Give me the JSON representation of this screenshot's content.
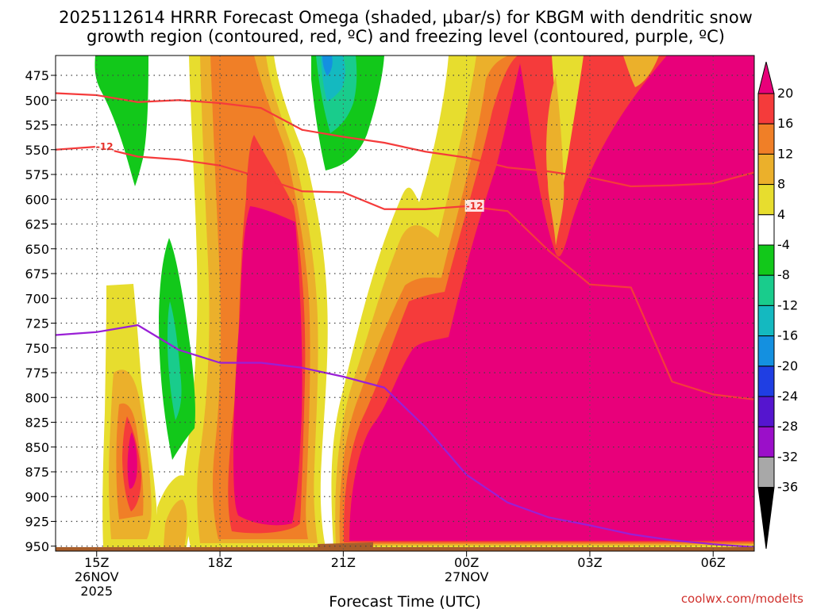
{
  "chart_data": {
    "type": "heatmap",
    "title_line1": "2025112614 HRRR Forecast Omega (shaded, μbar/s) for KBGM with dendritic snow",
    "title_line2": "growth region (contoured, red, ºC) and freezing level (contoured, purple, ºC)",
    "xlabel": "Forecast Time (UTC)",
    "credit": "coolwx.com/modelts",
    "x_range_hours": [
      14.0,
      31.0
    ],
    "y_range_hpa": [
      455,
      955
    ],
    "y_ticks": [
      475,
      500,
      525,
      550,
      575,
      600,
      625,
      650,
      675,
      700,
      725,
      750,
      775,
      800,
      825,
      850,
      875,
      900,
      925,
      950
    ],
    "x_ticks": [
      {
        "hour": 15,
        "lines": [
          "15Z",
          "26NOV",
          "2025"
        ]
      },
      {
        "hour": 18,
        "lines": [
          "18Z"
        ]
      },
      {
        "hour": 21,
        "lines": [
          "21Z"
        ]
      },
      {
        "hour": 24,
        "lines": [
          "00Z",
          "27NOV"
        ]
      },
      {
        "hour": 27,
        "lines": [
          "03Z"
        ]
      },
      {
        "hour": 30,
        "lines": [
          "06Z"
        ]
      }
    ],
    "colorbar": {
      "labels": [
        "20",
        "16",
        "12",
        "8",
        "4",
        "-4",
        "-8",
        "-12",
        "-16",
        "-20",
        "-24",
        "-28",
        "-32",
        "-36"
      ],
      "colors": {
        "pos20": "#e8007a",
        "pos16": "#f53b3b",
        "pos12": "#f07f27",
        "pos8": "#ebb02b",
        "pos4": "#e7dd2e",
        "zero": "#ffffff",
        "neg4": "#12c81a",
        "neg8": "#19cc8c",
        "neg12": "#14b9c0",
        "neg16": "#1490e0",
        "neg20": "#1f3ee3",
        "neg24": "#5515cf",
        "neg28": "#9b0fc9",
        "neg32": "#a8a8a8",
        "neg36": "#000000"
      }
    },
    "omega_regions": [
      {
        "label": "strong ascent 15-16Z",
        "level": 20,
        "center_hour": 16.0,
        "pressure_range_hpa": [
          795,
          880
        ]
      },
      {
        "label": "ascent band 18-20Z",
        "level": 20,
        "hour_range": [
          19.0,
          20.2
        ],
        "pressure_range_hpa": [
          570,
          920
        ]
      },
      {
        "label": "ascent band 22Z-08Z",
        "level": 20,
        "hour_range": [
          21.5,
          31.0
        ],
        "pressure_range_hpa": [
          455,
          950
        ]
      },
      {
        "label": "descent 15-16Z",
        "level": -8,
        "hour_range": [
          15.0,
          16.4
        ],
        "pressure_range_hpa": [
          455,
          560
        ]
      },
      {
        "label": "descent 17Z",
        "level": -12,
        "hour_range": [
          16.6,
          17.4
        ],
        "pressure_range_hpa": [
          600,
          835
        ]
      },
      {
        "label": "descent 21-22Z",
        "level": -16,
        "hour_range": [
          20.8,
          22.3
        ],
        "pressure_range_hpa": [
          455,
          540
        ]
      }
    ],
    "contours": [
      {
        "name": "dendritic -16C upper",
        "color": "#f53b3b",
        "x_hours": [
          14.0,
          15.0,
          16.0,
          17.0,
          18.0,
          19.0,
          20.0,
          21.0,
          22.0,
          23.0,
          24.0,
          25.0,
          26.0,
          27.0,
          28.0,
          29.0,
          30.0,
          31.0
        ],
        "pressure_hpa": [
          493,
          495,
          502,
          500,
          503,
          508,
          530,
          537,
          543,
          552,
          558,
          568,
          572,
          578,
          587,
          586,
          584,
          573
        ]
      },
      {
        "name": "dendritic -12C lower",
        "label": "-12",
        "color": "#f53b3b",
        "x_hours": [
          14.0,
          15.0,
          16.0,
          17.0,
          18.0,
          19.0,
          20.0,
          21.0,
          22.0,
          23.0,
          24.0,
          25.0,
          26.0,
          27.0,
          28.0,
          29.0,
          30.0,
          31.0
        ],
        "pressure_hpa": [
          550,
          547,
          557,
          560,
          566,
          578,
          592,
          593,
          610,
          610,
          607,
          612,
          652,
          686,
          689,
          784,
          797,
          802
        ]
      },
      {
        "name": "freezing level 0C",
        "color": "#9a1fd6",
        "x_hours": [
          14.0,
          15.0,
          16.0,
          17.0,
          18.0,
          19.0,
          20.0,
          21.0,
          22.0,
          23.0,
          24.0,
          25.0,
          26.0,
          27.0,
          28.0,
          29.0,
          30.0,
          31.0
        ],
        "pressure_hpa": [
          737,
          734,
          727,
          752,
          765,
          765,
          770,
          779,
          790,
          830,
          878,
          906,
          921,
          929,
          938,
          944,
          948,
          951
        ]
      }
    ]
  }
}
